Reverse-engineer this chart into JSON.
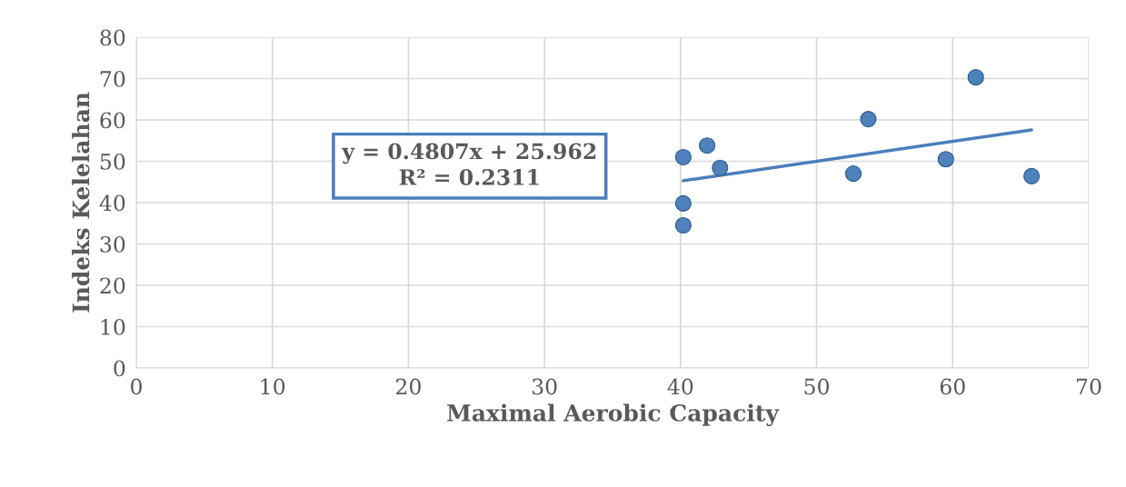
{
  "chart_data": {
    "type": "scatter",
    "xlabel": "Maximal Aerobic Capacity",
    "ylabel": "Indeks Kelelahan",
    "xlim": [
      0,
      70
    ],
    "xticks": [
      0,
      10,
      20,
      30,
      40,
      50,
      60,
      70
    ],
    "ylim": [
      0,
      80
    ],
    "yticks": [
      0,
      10,
      20,
      30,
      40,
      50,
      60,
      70,
      80
    ],
    "grid": true,
    "legend": false,
    "series": [
      {
        "marker": "circle",
        "color": "#4f81bd",
        "x": [
          40.2,
          40.2,
          40.2,
          41.95,
          42.9,
          52.7,
          53.8,
          59.5,
          61.7,
          65.8
        ],
        "values": [
          51.0,
          39.8,
          34.5,
          53.8,
          48.4,
          47.0,
          60.2,
          50.5,
          70.3,
          46.4
        ]
      },
      {
        "type": "line",
        "marker": "none",
        "color": "#4a7ebb",
        "x": [
          40.2,
          65.8
        ],
        "values": [
          45.3,
          57.6
        ]
      }
    ],
    "annotations": [
      {
        "text": "y = 0.4807x + 25.962\nR² = 0.2311"
      }
    ]
  }
}
